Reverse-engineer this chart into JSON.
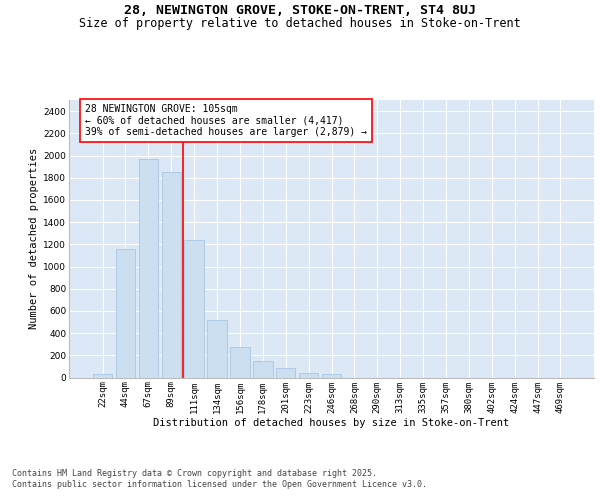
{
  "title": "28, NEWINGTON GROVE, STOKE-ON-TRENT, ST4 8UJ",
  "subtitle": "Size of property relative to detached houses in Stoke-on-Trent",
  "xlabel": "Distribution of detached houses by size in Stoke-on-Trent",
  "ylabel": "Number of detached properties",
  "bar_color": "#ccdff0",
  "bar_edge_color": "#a0c0e0",
  "bg_color": "#dce8f5",
  "grid_color": "#ffffff",
  "categories": [
    "22sqm",
    "44sqm",
    "67sqm",
    "89sqm",
    "111sqm",
    "134sqm",
    "156sqm",
    "178sqm",
    "201sqm",
    "223sqm",
    "246sqm",
    "268sqm",
    "290sqm",
    "313sqm",
    "335sqm",
    "357sqm",
    "380sqm",
    "402sqm",
    "424sqm",
    "447sqm",
    "469sqm"
  ],
  "values": [
    30,
    1160,
    1970,
    1855,
    1240,
    520,
    275,
    150,
    85,
    40,
    30,
    0,
    0,
    0,
    0,
    0,
    0,
    0,
    0,
    0,
    0
  ],
  "property_line_label": "28 NEWINGTON GROVE: 105sqm",
  "annotation_line1": "← 60% of detached houses are smaller (4,417)",
  "annotation_line2": "39% of semi-detached houses are larger (2,879) →",
  "red_line_x": 4.0,
  "ylim": [
    0,
    2500
  ],
  "yticks": [
    0,
    200,
    400,
    600,
    800,
    1000,
    1200,
    1400,
    1600,
    1800,
    2000,
    2200,
    2400
  ],
  "footer_line1": "Contains HM Land Registry data © Crown copyright and database right 2025.",
  "footer_line2": "Contains public sector information licensed under the Open Government Licence v3.0.",
  "title_fontsize": 9.5,
  "subtitle_fontsize": 8.5,
  "axis_fontsize": 7.5,
  "tick_fontsize": 6.5,
  "annot_fontsize": 7,
  "footer_fontsize": 6
}
